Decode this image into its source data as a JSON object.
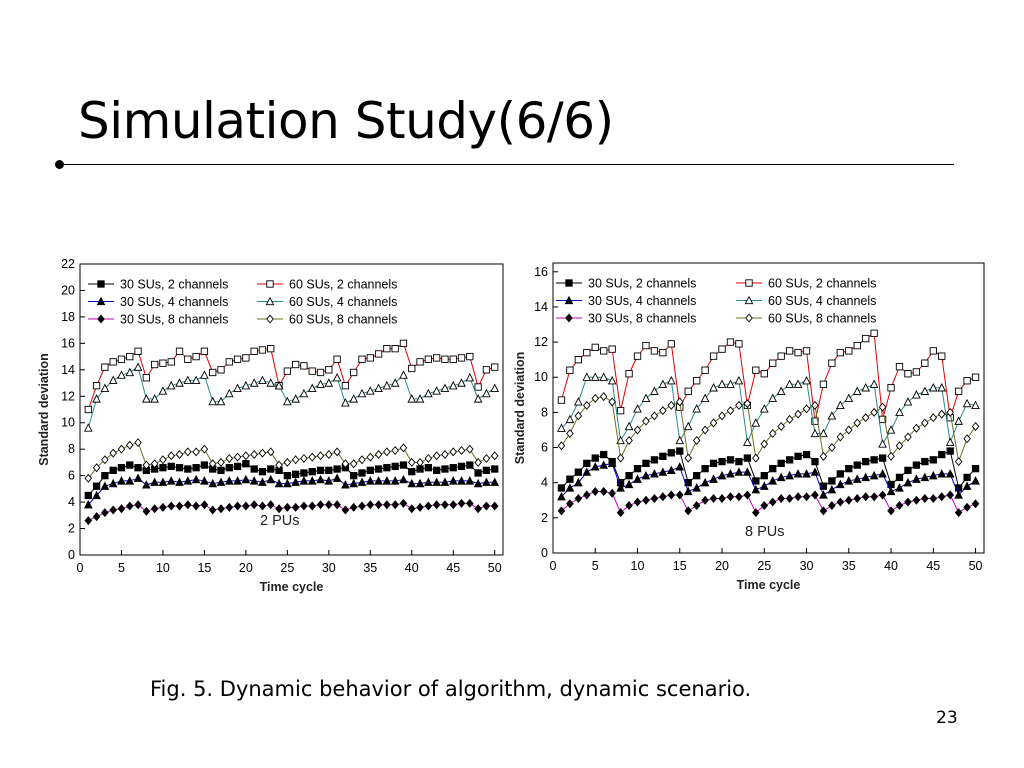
{
  "slide": {
    "title": "Simulation Study(6/6)",
    "caption": "Fig. 5. Dynamic behavior of algorithm, dynamic scenario.",
    "page_number": "23"
  },
  "chart_data": [
    {
      "type": "line",
      "annotation": "2 PUs",
      "xlabel": "Time cycle",
      "ylabel": "Standard deviation",
      "xlim": [
        0,
        51
      ],
      "ylim": [
        0,
        22
      ],
      "xticks": [
        0,
        5,
        10,
        15,
        20,
        25,
        30,
        35,
        40,
        45,
        50
      ],
      "yticks": [
        0,
        2,
        4,
        6,
        8,
        10,
        12,
        14,
        16,
        18,
        20,
        22
      ],
      "grid": false,
      "legend": "top-left",
      "x_start": 1,
      "series": [
        {
          "name": "30 SUs, 2 channels",
          "color": "#000000",
          "marker": "square-filled",
          "values": [
            4.5,
            5.2,
            6.0,
            6.4,
            6.6,
            6.8,
            6.6,
            6.4,
            6.5,
            6.6,
            6.7,
            6.6,
            6.5,
            6.6,
            6.8,
            6.5,
            6.4,
            6.6,
            6.7,
            6.9,
            6.5,
            6.3,
            6.5,
            6.4,
            6.0,
            6.1,
            6.2,
            6.3,
            6.4,
            6.4,
            6.5,
            6.6,
            6.0,
            6.2,
            6.4,
            6.5,
            6.6,
            6.7,
            6.8,
            6.3,
            6.5,
            6.6,
            6.4,
            6.5,
            6.6,
            6.7,
            6.8,
            6.2,
            6.4,
            6.5
          ]
        },
        {
          "name": "60 SUs, 2 channels",
          "color": "#e00000",
          "marker": "square-open",
          "values": [
            11.0,
            12.8,
            14.2,
            14.6,
            14.8,
            15.0,
            15.4,
            13.4,
            14.4,
            14.5,
            14.6,
            15.4,
            14.8,
            15.0,
            15.4,
            13.8,
            14.0,
            14.6,
            14.8,
            14.9,
            15.4,
            15.5,
            15.6,
            12.8,
            13.9,
            14.4,
            14.3,
            13.9,
            13.8,
            14.0,
            14.8,
            12.8,
            13.8,
            14.8,
            14.9,
            15.2,
            15.6,
            15.6,
            16.0,
            14.1,
            14.6,
            14.8,
            14.9,
            14.8,
            14.8,
            14.9,
            15.0,
            12.7,
            14.0,
            14.2
          ]
        },
        {
          "name": "30 SUs, 4 channels",
          "color": "#0000cc",
          "marker": "triangle-filled",
          "values": [
            3.8,
            4.5,
            5.2,
            5.4,
            5.6,
            5.6,
            5.8,
            5.3,
            5.5,
            5.5,
            5.6,
            5.5,
            5.6,
            5.7,
            5.6,
            5.4,
            5.5,
            5.6,
            5.6,
            5.7,
            5.6,
            5.5,
            5.7,
            5.4,
            5.4,
            5.5,
            5.6,
            5.6,
            5.7,
            5.6,
            5.8,
            5.3,
            5.4,
            5.5,
            5.6,
            5.6,
            5.6,
            5.6,
            5.7,
            5.4,
            5.4,
            5.5,
            5.5,
            5.5,
            5.6,
            5.6,
            5.6,
            5.4,
            5.5,
            5.5
          ]
        },
        {
          "name": "60 SUs, 4 channels",
          "color": "#2a8a8a",
          "marker": "triangle-open",
          "values": [
            9.6,
            11.8,
            12.6,
            13.2,
            13.6,
            13.8,
            14.2,
            11.8,
            11.8,
            12.4,
            12.8,
            13.0,
            13.2,
            13.2,
            13.6,
            11.6,
            11.6,
            12.2,
            12.6,
            12.8,
            13.0,
            13.2,
            13.0,
            12.8,
            11.6,
            11.8,
            12.2,
            12.6,
            12.9,
            13.0,
            13.4,
            11.5,
            11.8,
            12.2,
            12.4,
            12.6,
            12.8,
            13.0,
            13.6,
            11.8,
            11.8,
            12.2,
            12.4,
            12.6,
            12.8,
            13.0,
            13.4,
            11.8,
            12.2,
            12.6
          ]
        },
        {
          "name": "30 SUs, 8 channels",
          "color": "#cc00cc",
          "marker": "diamond-filled",
          "values": [
            2.6,
            2.9,
            3.2,
            3.4,
            3.5,
            3.7,
            3.8,
            3.3,
            3.5,
            3.6,
            3.7,
            3.7,
            3.8,
            3.7,
            3.8,
            3.4,
            3.5,
            3.6,
            3.7,
            3.7,
            3.8,
            3.7,
            3.8,
            3.5,
            3.6,
            3.6,
            3.7,
            3.7,
            3.8,
            3.8,
            3.8,
            3.4,
            3.6,
            3.7,
            3.8,
            3.8,
            3.8,
            3.8,
            3.9,
            3.5,
            3.6,
            3.7,
            3.8,
            3.8,
            3.8,
            3.9,
            3.9,
            3.5,
            3.7,
            3.7
          ]
        },
        {
          "name": "60 SUs, 8 channels",
          "color": "#707020",
          "marker": "diamond-open",
          "values": [
            5.8,
            6.6,
            7.2,
            7.7,
            8.0,
            8.3,
            8.5,
            6.8,
            6.9,
            7.2,
            7.5,
            7.6,
            7.8,
            7.8,
            8.0,
            6.9,
            7.0,
            7.3,
            7.4,
            7.5,
            7.6,
            7.7,
            7.8,
            6.8,
            7.0,
            7.2,
            7.3,
            7.4,
            7.5,
            7.6,
            7.8,
            6.9,
            6.9,
            7.2,
            7.4,
            7.6,
            7.8,
            7.9,
            8.1,
            7.0,
            7.0,
            7.3,
            7.5,
            7.6,
            7.8,
            7.9,
            8.0,
            7.0,
            7.3,
            7.5
          ]
        }
      ]
    },
    {
      "type": "line",
      "annotation": "8 PUs",
      "xlabel": "Time cycle",
      "ylabel": "Standard deviation",
      "xlim": [
        0,
        51
      ],
      "ylim": [
        0,
        16.5
      ],
      "xticks": [
        0,
        5,
        10,
        15,
        20,
        25,
        30,
        35,
        40,
        45,
        50
      ],
      "yticks": [
        0,
        2,
        4,
        6,
        8,
        10,
        12,
        14,
        16
      ],
      "grid": false,
      "legend": "top-left",
      "x_start": 1,
      "series": [
        {
          "name": "30 SUs, 2 channels",
          "color": "#000000",
          "marker": "square-filled",
          "values": [
            3.7,
            4.2,
            4.6,
            5.1,
            5.4,
            5.6,
            5.2,
            4.0,
            4.4,
            4.8,
            5.1,
            5.3,
            5.5,
            5.7,
            5.8,
            4.0,
            4.4,
            4.8,
            5.1,
            5.2,
            5.3,
            5.2,
            5.4,
            4.1,
            4.4,
            4.8,
            5.1,
            5.3,
            5.5,
            5.6,
            5.2,
            3.8,
            4.1,
            4.5,
            4.8,
            5.0,
            5.2,
            5.3,
            5.4,
            3.9,
            4.3,
            4.7,
            5.0,
            5.2,
            5.3,
            5.6,
            5.8,
            3.7,
            4.3,
            4.8
          ]
        },
        {
          "name": "60 SUs, 2 channels",
          "color": "#e00000",
          "marker": "square-open",
          "values": [
            8.7,
            10.4,
            11.0,
            11.4,
            11.7,
            11.5,
            11.6,
            8.1,
            10.2,
            11.2,
            11.8,
            11.5,
            11.4,
            11.9,
            8.3,
            9.2,
            9.8,
            10.4,
            11.2,
            11.6,
            12.0,
            11.9,
            8.4,
            10.4,
            10.2,
            10.8,
            11.2,
            11.5,
            11.4,
            11.5,
            7.5,
            9.6,
            10.8,
            11.4,
            11.5,
            11.8,
            12.2,
            12.5,
            7.6,
            9.4,
            10.6,
            10.2,
            10.3,
            10.8,
            11.5,
            11.2,
            7.7,
            9.2,
            9.8,
            10.0
          ]
        },
        {
          "name": "30 SUs, 4 channels",
          "color": "#0000cc",
          "marker": "triangle-filled",
          "values": [
            3.2,
            3.7,
            4.0,
            4.6,
            4.9,
            5.0,
            5.1,
            3.7,
            3.9,
            4.2,
            4.4,
            4.5,
            4.6,
            4.7,
            4.9,
            3.5,
            3.7,
            4.0,
            4.2,
            4.4,
            4.5,
            4.6,
            4.6,
            3.6,
            3.8,
            4.1,
            4.3,
            4.4,
            4.5,
            4.5,
            4.6,
            3.3,
            3.6,
            3.9,
            4.1,
            4.2,
            4.3,
            4.4,
            4.5,
            3.5,
            3.7,
            4.0,
            4.2,
            4.3,
            4.4,
            4.5,
            4.5,
            3.3,
            3.8,
            4.1
          ]
        },
        {
          "name": "60 SUs, 4 channels",
          "color": "#2a8a8a",
          "marker": "triangle-open",
          "values": [
            7.1,
            7.6,
            8.6,
            10.0,
            10.0,
            10.0,
            9.8,
            6.4,
            7.2,
            8.2,
            8.8,
            9.2,
            9.6,
            9.8,
            6.4,
            7.2,
            8.2,
            8.8,
            9.4,
            9.6,
            9.6,
            9.8,
            6.3,
            7.4,
            8.2,
            8.8,
            9.2,
            9.6,
            9.6,
            9.8,
            6.8,
            6.8,
            7.8,
            8.4,
            8.8,
            9.2,
            9.4,
            9.6,
            6.2,
            7.0,
            8.0,
            8.6,
            9.0,
            9.2,
            9.4,
            9.4,
            6.3,
            7.5,
            8.5,
            8.4
          ]
        },
        {
          "name": "30 SUs, 8 channels",
          "color": "#cc00cc",
          "marker": "diamond-filled",
          "values": [
            2.4,
            2.8,
            3.1,
            3.3,
            3.5,
            3.5,
            3.4,
            2.3,
            2.7,
            2.9,
            3.0,
            3.1,
            3.2,
            3.3,
            3.3,
            2.4,
            2.7,
            3.0,
            3.1,
            3.1,
            3.2,
            3.2,
            3.3,
            2.3,
            2.7,
            2.9,
            3.1,
            3.1,
            3.2,
            3.2,
            3.3,
            2.4,
            2.7,
            2.9,
            3.0,
            3.1,
            3.2,
            3.2,
            3.3,
            2.4,
            2.7,
            2.9,
            3.0,
            3.1,
            3.1,
            3.2,
            3.3,
            2.3,
            2.6,
            2.8
          ]
        },
        {
          "name": "60 SUs, 8 channels",
          "color": "#707020",
          "marker": "diamond-open",
          "values": [
            6.1,
            6.8,
            7.8,
            8.4,
            8.8,
            8.9,
            8.6,
            5.4,
            6.4,
            7.0,
            7.5,
            7.8,
            8.1,
            8.4,
            8.6,
            5.4,
            6.4,
            7.0,
            7.4,
            7.8,
            8.1,
            8.4,
            8.5,
            5.4,
            6.2,
            6.8,
            7.2,
            7.6,
            7.9,
            8.2,
            8.4,
            5.5,
            6.0,
            6.6,
            7.0,
            7.4,
            7.7,
            8.0,
            8.3,
            5.5,
            6.1,
            6.6,
            7.1,
            7.4,
            7.7,
            7.9,
            8.0,
            5.2,
            6.5,
            7.2
          ]
        }
      ]
    }
  ]
}
